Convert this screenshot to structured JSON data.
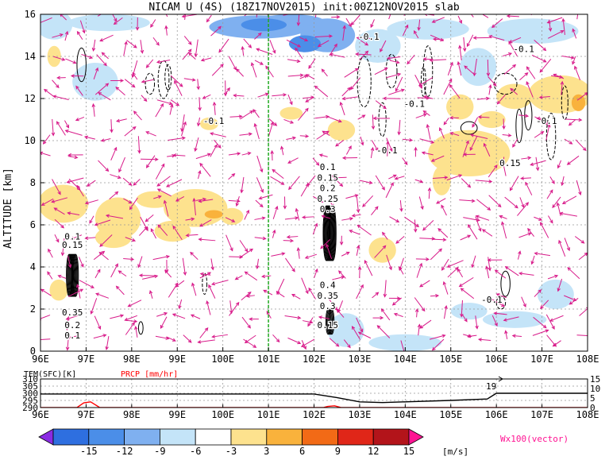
{
  "chart_data": [
    {
      "type": "heatmap",
      "title": "NICAM U (4S) (18Z17NOV2015) init:00Z12NOV2015 slab",
      "ylabel": "ALTITUDE [km]",
      "xlim": [
        96,
        108
      ],
      "ylim": [
        0,
        16
      ],
      "x_ticks": [
        "96E",
        "97E",
        "98E",
        "99E",
        "100E",
        "101E",
        "102E",
        "103E",
        "104E",
        "105E",
        "106E",
        "107E",
        "108E"
      ],
      "y_ticks": [
        "0",
        "2",
        "4",
        "6",
        "8",
        "10",
        "12",
        "14",
        "16"
      ],
      "grid": true,
      "marker_line_lon": 101,
      "contour_labels": [
        {
          "text": "-0.1",
          "x": 99.8,
          "y": 10.8
        },
        {
          "text": "-0.1",
          "x": 103.2,
          "y": 14.8
        },
        {
          "text": "-0.1",
          "x": 103.6,
          "y": 9.4
        },
        {
          "text": "-0.1",
          "x": 104.2,
          "y": 11.6
        },
        {
          "text": "-0.1",
          "x": 106.6,
          "y": 14.2
        },
        {
          "text": "-0.1",
          "x": 107.1,
          "y": 10.8
        },
        {
          "text": "-0.1",
          "x": 105.9,
          "y": 2.3
        },
        {
          "text": "0.15",
          "x": 106.3,
          "y": 8.8
        },
        {
          "text": "0.1",
          "x": 96.7,
          "y": 5.3
        },
        {
          "text": "0.15",
          "x": 96.7,
          "y": 4.9
        },
        {
          "text": "0.35",
          "x": 96.7,
          "y": 1.7
        },
        {
          "text": "0.2",
          "x": 96.7,
          "y": 1.1
        },
        {
          "text": "0.1",
          "x": 96.7,
          "y": 0.6
        },
        {
          "text": "0.1",
          "x": 102.3,
          "y": 8.6
        },
        {
          "text": "0.15",
          "x": 102.3,
          "y": 8.1
        },
        {
          "text": "0.2",
          "x": 102.3,
          "y": 7.6
        },
        {
          "text": "0.25",
          "x": 102.3,
          "y": 7.1
        },
        {
          "text": "0.3",
          "x": 102.3,
          "y": 6.6
        },
        {
          "text": "0.4",
          "x": 102.3,
          "y": 3.0
        },
        {
          "text": "0.35",
          "x": 102.3,
          "y": 2.5
        },
        {
          "text": "0.3",
          "x": 102.3,
          "y": 2.0
        },
        {
          "text": "0.15",
          "x": 102.3,
          "y": 1.1
        }
      ]
    },
    {
      "type": "line",
      "series": [
        {
          "name": "TEM(SFC)[K]",
          "color": "#000000",
          "x": [
            96,
            97,
            98,
            99,
            100,
            101,
            102,
            102.5,
            103,
            103.5,
            104,
            105,
            105.8,
            106,
            107,
            108
          ],
          "values": [
            299.5,
            299.5,
            299.5,
            299.5,
            299.5,
            299.5,
            299.5,
            297,
            294,
            293.5,
            294,
            295,
            296,
            300,
            300,
            300
          ]
        },
        {
          "name": "PRCP [mm/hr]",
          "color": "#ff0000",
          "x": [
            96,
            96.8,
            96.95,
            97.1,
            97.3,
            98,
            102.2,
            102.3,
            102.45,
            102.6,
            103,
            108
          ],
          "values": [
            0,
            0,
            2.5,
            3,
            0,
            0,
            0,
            0.6,
            0.9,
            0,
            0,
            0
          ]
        }
      ],
      "x_ticks": [
        "96E",
        "97E",
        "98E",
        "99E",
        "100E",
        "101E",
        "102E",
        "103E",
        "104E",
        "105E",
        "106E",
        "107E",
        "108E"
      ],
      "y_ticks_left": [
        "290",
        "295",
        "300",
        "305",
        "310"
      ],
      "y_ticks_right": [
        "0",
        "5",
        "10",
        "15"
      ],
      "ylim_left": [
        290,
        310
      ],
      "ylim_right": [
        0,
        15
      ],
      "annotation": "19"
    }
  ],
  "colorbar": {
    "ticks": [
      "-15",
      "-12",
      "-9",
      "-6",
      "-3",
      "3",
      "6",
      "9",
      "12",
      "15"
    ],
    "unit": "[m/s]",
    "colors": [
      "#8a2be2",
      "#2e6fe0",
      "#4b8ee8",
      "#7fb0f0",
      "#c4e4f8",
      "#ffffff",
      "#fde28e",
      "#f9b23c",
      "#f26a16",
      "#e02618",
      "#b3141a",
      "#ff1493"
    ]
  },
  "vector_label": "Wx100(vector)"
}
